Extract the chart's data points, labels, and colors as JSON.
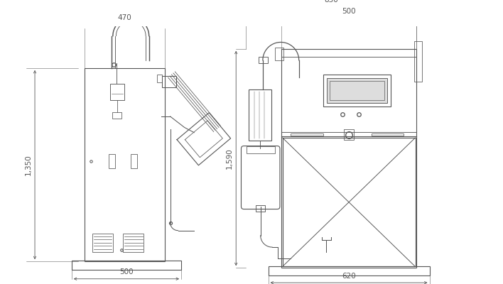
{
  "bg_color": "#ffffff",
  "lc": "#555555",
  "lw": 0.8,
  "dlw": 0.6,
  "fig_width": 7.08,
  "fig_height": 4.0,
  "dpi": 100
}
